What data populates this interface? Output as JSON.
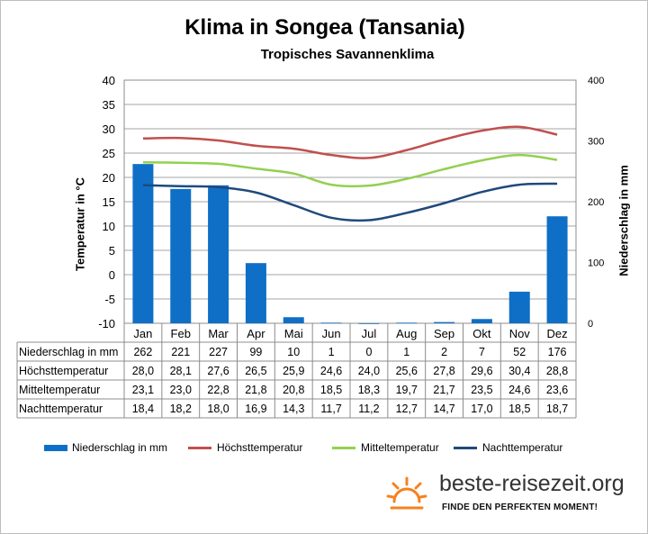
{
  "chart_data": {
    "type": "bar",
    "title": "Klima in Songea (Tansania)",
    "subtitle": "Tropisches Savannenklima",
    "ylabel_left": "Temperatur in °C",
    "ylabel_right": "Niederschlag in mm",
    "ylim_left": [
      -10,
      40
    ],
    "yticks_left": [
      40,
      35,
      30,
      25,
      20,
      15,
      10,
      5,
      0,
      -5,
      -10
    ],
    "ylim_right": [
      0,
      400
    ],
    "yticks_right": [
      400,
      300,
      200,
      100,
      0
    ],
    "grid": true,
    "legend_position": "bottom",
    "categories": [
      "Jan",
      "Feb",
      "Mar",
      "Apr",
      "Mai",
      "Jun",
      "Jul",
      "Aug",
      "Sep",
      "Okt",
      "Nov",
      "Dez"
    ],
    "series": [
      {
        "name": "Niederschlag in mm",
        "kind": "bar",
        "axis": "right",
        "color": "#0f6fc6",
        "values": [
          "262",
          "221",
          "227",
          "99",
          "10",
          "1",
          "0",
          "1",
          "2",
          "7",
          "52",
          "176"
        ]
      },
      {
        "name": "Höchsttemperatur",
        "kind": "line",
        "axis": "left",
        "color": "#c0504d",
        "values": [
          "28,0",
          "28,1",
          "27,6",
          "26,5",
          "25,9",
          "24,6",
          "24,0",
          "25,6",
          "27,8",
          "29,6",
          "30,4",
          "28,8"
        ]
      },
      {
        "name": "Mitteltemperatur",
        "kind": "line",
        "axis": "left",
        "color": "#92d050",
        "values": [
          "23,1",
          "23,0",
          "22,8",
          "21,8",
          "20,8",
          "18,5",
          "18,3",
          "19,7",
          "21,7",
          "23,5",
          "24,6",
          "23,6"
        ]
      },
      {
        "name": "Nachttemperatur",
        "kind": "line",
        "axis": "left",
        "color": "#1f497d",
        "values": [
          "18,4",
          "18,2",
          "18,0",
          "16,9",
          "14,3",
          "11,7",
          "11,2",
          "12,7",
          "14,7",
          "17,0",
          "18,5",
          "18,7"
        ]
      }
    ]
  },
  "brand": {
    "name": "beste-reisezeit.org",
    "tagline": "FINDE DEN PERFEKTEN MOMENT!",
    "sun_icon": "sun-icon"
  }
}
